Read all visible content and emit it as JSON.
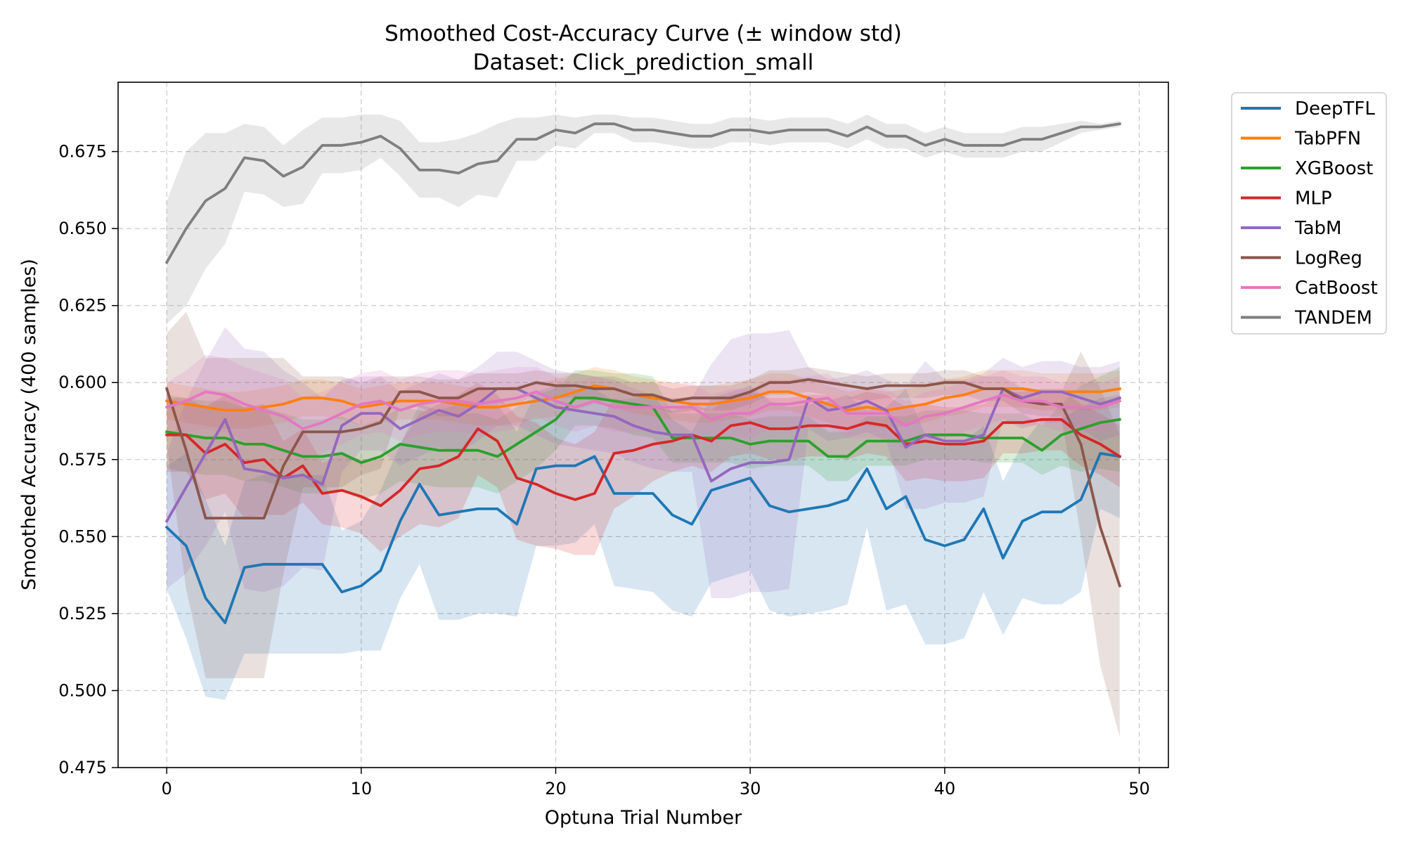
{
  "chart_data": {
    "type": "line",
    "title": "Smoothed Cost-Accuracy Curve (± window std)",
    "subtitle": "Dataset: Click_prediction_small",
    "xlabel": "Optuna Trial Number",
    "ylabel": "Smoothed Accuracy (400 samples)",
    "xlim": [
      -2.5,
      51.5
    ],
    "ylim": [
      0.475,
      0.6975
    ],
    "x_ticks": [
      0,
      10,
      20,
      30,
      40,
      50
    ],
    "y_ticks": [
      0.475,
      0.5,
      0.525,
      0.55,
      0.575,
      0.6,
      0.625,
      0.65,
      0.675
    ],
    "x_tick_labels": [
      "0",
      "10",
      "20",
      "30",
      "40",
      "50"
    ],
    "y_tick_labels": [
      "0.475",
      "0.500",
      "0.525",
      "0.550",
      "0.575",
      "0.600",
      "0.625",
      "0.650",
      "0.675"
    ],
    "grid": true,
    "legend_position": "outside-top-right",
    "x": [
      0,
      1,
      2,
      3,
      4,
      5,
      6,
      7,
      8,
      9,
      10,
      11,
      12,
      13,
      14,
      15,
      16,
      17,
      18,
      19,
      20,
      21,
      22,
      23,
      24,
      25,
      26,
      27,
      28,
      29,
      30,
      31,
      32,
      33,
      34,
      35,
      36,
      37,
      38,
      39,
      40,
      41,
      42,
      43,
      44,
      45,
      46,
      47,
      48,
      49
    ],
    "series": [
      {
        "name": "DeepTFL",
        "color": "#1f77b4",
        "values": [
          0.553,
          0.547,
          0.53,
          0.522,
          0.54,
          0.541,
          0.541,
          0.541,
          0.541,
          0.532,
          0.534,
          0.539,
          0.555,
          0.567,
          0.557,
          0.558,
          0.559,
          0.559,
          0.554,
          0.572,
          0.573,
          0.573,
          0.576,
          0.564,
          0.564,
          0.564,
          0.557,
          0.554,
          0.565,
          0.567,
          0.569,
          0.56,
          0.558,
          0.559,
          0.56,
          0.562,
          0.572,
          0.559,
          0.563,
          0.549,
          0.547,
          0.549,
          0.559,
          0.543,
          0.555,
          0.558,
          0.558,
          0.562,
          0.577,
          0.576
        ],
        "std": [
          0.02,
          0.03,
          0.032,
          0.025,
          0.028,
          0.029,
          0.029,
          0.029,
          0.029,
          0.02,
          0.021,
          0.026,
          0.025,
          0.026,
          0.034,
          0.035,
          0.034,
          0.034,
          0.03,
          0.025,
          0.026,
          0.025,
          0.022,
          0.03,
          0.031,
          0.032,
          0.031,
          0.03,
          0.03,
          0.03,
          0.03,
          0.034,
          0.034,
          0.034,
          0.034,
          0.034,
          0.019,
          0.033,
          0.035,
          0.034,
          0.032,
          0.032,
          0.027,
          0.025,
          0.025,
          0.03,
          0.03,
          0.03,
          0.018,
          0.02
        ]
      },
      {
        "name": "TabPFN",
        "color": "#ff7f0e",
        "values": [
          0.594,
          0.593,
          0.592,
          0.591,
          0.591,
          0.592,
          0.593,
          0.595,
          0.595,
          0.594,
          0.592,
          0.593,
          0.594,
          0.594,
          0.594,
          0.593,
          0.592,
          0.592,
          0.593,
          0.594,
          0.595,
          0.597,
          0.599,
          0.598,
          0.596,
          0.595,
          0.594,
          0.593,
          0.593,
          0.594,
          0.595,
          0.597,
          0.597,
          0.595,
          0.593,
          0.591,
          0.592,
          0.591,
          0.592,
          0.593,
          0.595,
          0.596,
          0.598,
          0.598,
          0.598,
          0.597,
          0.597,
          0.597,
          0.597,
          0.598
        ],
        "std": [
          0.006,
          0.006,
          0.006,
          0.006,
          0.006,
          0.006,
          0.006,
          0.006,
          0.006,
          0.006,
          0.006,
          0.006,
          0.006,
          0.006,
          0.006,
          0.006,
          0.006,
          0.006,
          0.006,
          0.006,
          0.006,
          0.006,
          0.006,
          0.006,
          0.006,
          0.006,
          0.006,
          0.006,
          0.006,
          0.006,
          0.006,
          0.006,
          0.006,
          0.006,
          0.006,
          0.006,
          0.006,
          0.006,
          0.006,
          0.006,
          0.006,
          0.006,
          0.006,
          0.006,
          0.006,
          0.006,
          0.006,
          0.006,
          0.006,
          0.006
        ]
      },
      {
        "name": "XGBoost",
        "color": "#2ca02c",
        "values": [
          0.584,
          0.583,
          0.582,
          0.582,
          0.58,
          0.58,
          0.578,
          0.576,
          0.576,
          0.577,
          0.574,
          0.576,
          0.58,
          0.579,
          0.578,
          0.578,
          0.578,
          0.576,
          0.58,
          0.584,
          0.588,
          0.595,
          0.595,
          0.594,
          0.593,
          0.592,
          0.582,
          0.582,
          0.582,
          0.582,
          0.58,
          0.581,
          0.581,
          0.581,
          0.576,
          0.576,
          0.581,
          0.581,
          0.581,
          0.583,
          0.583,
          0.583,
          0.582,
          0.582,
          0.582,
          0.578,
          0.583,
          0.585,
          0.587,
          0.588
        ],
        "std": [
          0.012,
          0.012,
          0.012,
          0.012,
          0.012,
          0.012,
          0.012,
          0.012,
          0.012,
          0.012,
          0.012,
          0.012,
          0.012,
          0.012,
          0.012,
          0.012,
          0.012,
          0.012,
          0.012,
          0.012,
          0.01,
          0.009,
          0.009,
          0.009,
          0.01,
          0.01,
          0.008,
          0.008,
          0.008,
          0.008,
          0.008,
          0.008,
          0.008,
          0.008,
          0.008,
          0.008,
          0.008,
          0.008,
          0.008,
          0.008,
          0.008,
          0.008,
          0.008,
          0.008,
          0.008,
          0.008,
          0.01,
          0.014,
          0.015,
          0.017
        ]
      },
      {
        "name": "MLP",
        "color": "#d62728",
        "values": [
          0.583,
          0.583,
          0.577,
          0.58,
          0.574,
          0.575,
          0.569,
          0.573,
          0.564,
          0.565,
          0.563,
          0.56,
          0.565,
          0.572,
          0.573,
          0.576,
          0.585,
          0.581,
          0.569,
          0.567,
          0.564,
          0.562,
          0.564,
          0.577,
          0.578,
          0.58,
          0.581,
          0.583,
          0.581,
          0.586,
          0.587,
          0.585,
          0.585,
          0.586,
          0.586,
          0.585,
          0.587,
          0.586,
          0.58,
          0.581,
          0.58,
          0.58,
          0.581,
          0.587,
          0.587,
          0.588,
          0.588,
          0.583,
          0.58,
          0.576
        ],
        "std": [
          0.012,
          0.012,
          0.015,
          0.016,
          0.018,
          0.018,
          0.012,
          0.012,
          0.01,
          0.012,
          0.012,
          0.015,
          0.015,
          0.018,
          0.02,
          0.02,
          0.015,
          0.015,
          0.02,
          0.02,
          0.018,
          0.018,
          0.02,
          0.018,
          0.015,
          0.012,
          0.01,
          0.01,
          0.01,
          0.01,
          0.01,
          0.01,
          0.01,
          0.01,
          0.01,
          0.01,
          0.01,
          0.01,
          0.012,
          0.012,
          0.012,
          0.012,
          0.012,
          0.01,
          0.01,
          0.01,
          0.01,
          0.01,
          0.01,
          0.01
        ]
      },
      {
        "name": "TabM",
        "color": "#9467bd",
        "values": [
          0.555,
          0.566,
          0.577,
          0.588,
          0.572,
          0.571,
          0.569,
          0.57,
          0.567,
          0.586,
          0.59,
          0.59,
          0.585,
          0.588,
          0.591,
          0.589,
          0.593,
          0.598,
          0.598,
          0.595,
          0.592,
          0.591,
          0.59,
          0.589,
          0.586,
          0.584,
          0.583,
          0.583,
          0.568,
          0.572,
          0.574,
          0.574,
          0.575,
          0.595,
          0.591,
          0.592,
          0.594,
          0.591,
          0.579,
          0.583,
          0.581,
          0.581,
          0.583,
          0.598,
          0.595,
          0.597,
          0.597,
          0.595,
          0.593,
          0.595
        ],
        "std": [
          0.022,
          0.028,
          0.03,
          0.03,
          0.039,
          0.039,
          0.035,
          0.03,
          0.028,
          0.015,
          0.012,
          0.012,
          0.012,
          0.012,
          0.012,
          0.012,
          0.012,
          0.012,
          0.012,
          0.012,
          0.012,
          0.012,
          0.012,
          0.012,
          0.012,
          0.012,
          0.012,
          0.012,
          0.038,
          0.042,
          0.042,
          0.042,
          0.042,
          0.01,
          0.01,
          0.01,
          0.01,
          0.01,
          0.02,
          0.024,
          0.02,
          0.02,
          0.02,
          0.01,
          0.01,
          0.01,
          0.01,
          0.01,
          0.012,
          0.012
        ]
      },
      {
        "name": "LogReg",
        "color": "#8c564b",
        "values": [
          0.598,
          0.578,
          0.556,
          0.556,
          0.556,
          0.556,
          0.573,
          0.584,
          0.584,
          0.584,
          0.585,
          0.587,
          0.597,
          0.597,
          0.595,
          0.595,
          0.598,
          0.598,
          0.598,
          0.6,
          0.599,
          0.599,
          0.598,
          0.598,
          0.596,
          0.596,
          0.594,
          0.595,
          0.595,
          0.595,
          0.597,
          0.6,
          0.6,
          0.601,
          0.6,
          0.599,
          0.598,
          0.599,
          0.599,
          0.599,
          0.6,
          0.6,
          0.598,
          0.598,
          0.594,
          0.593,
          0.593,
          0.58,
          0.553,
          0.534
        ],
        "std": [
          0.018,
          0.045,
          0.052,
          0.052,
          0.052,
          0.052,
          0.035,
          0.018,
          0.018,
          0.018,
          0.015,
          0.015,
          0.005,
          0.005,
          0.006,
          0.006,
          0.005,
          0.005,
          0.005,
          0.004,
          0.004,
          0.004,
          0.004,
          0.004,
          0.004,
          0.004,
          0.004,
          0.004,
          0.004,
          0.004,
          0.004,
          0.004,
          0.004,
          0.004,
          0.004,
          0.004,
          0.004,
          0.004,
          0.004,
          0.004,
          0.004,
          0.004,
          0.004,
          0.004,
          0.004,
          0.004,
          0.004,
          0.03,
          0.045,
          0.049
        ]
      },
      {
        "name": "CatBoost",
        "color": "#e377c2",
        "values": [
          0.592,
          0.594,
          0.597,
          0.596,
          0.593,
          0.591,
          0.589,
          0.585,
          0.587,
          0.59,
          0.593,
          0.594,
          0.591,
          0.593,
          0.594,
          0.594,
          0.593,
          0.594,
          0.595,
          0.597,
          0.594,
          0.592,
          0.594,
          0.592,
          0.592,
          0.592,
          0.592,
          0.592,
          0.588,
          0.59,
          0.59,
          0.593,
          0.593,
          0.594,
          0.595,
          0.59,
          0.59,
          0.59,
          0.586,
          0.589,
          0.59,
          0.592,
          0.594,
          0.596,
          0.594,
          0.594,
          0.592,
          0.592,
          0.592,
          0.594
        ],
        "std": [
          0.008,
          0.01,
          0.012,
          0.012,
          0.012,
          0.012,
          0.012,
          0.01,
          0.01,
          0.01,
          0.01,
          0.01,
          0.01,
          0.01,
          0.01,
          0.01,
          0.01,
          0.01,
          0.01,
          0.008,
          0.008,
          0.008,
          0.008,
          0.008,
          0.008,
          0.008,
          0.008,
          0.008,
          0.008,
          0.008,
          0.008,
          0.008,
          0.008,
          0.008,
          0.008,
          0.008,
          0.008,
          0.008,
          0.008,
          0.008,
          0.008,
          0.008,
          0.008,
          0.008,
          0.008,
          0.008,
          0.008,
          0.008,
          0.008,
          0.008
        ]
      },
      {
        "name": "TANDEM",
        "color": "#7f7f7f",
        "values": [
          0.639,
          0.65,
          0.659,
          0.663,
          0.673,
          0.672,
          0.667,
          0.67,
          0.677,
          0.677,
          0.678,
          0.68,
          0.676,
          0.669,
          0.669,
          0.668,
          0.671,
          0.672,
          0.679,
          0.679,
          0.682,
          0.681,
          0.684,
          0.684,
          0.682,
          0.682,
          0.681,
          0.68,
          0.68,
          0.682,
          0.682,
          0.681,
          0.682,
          0.682,
          0.682,
          0.68,
          0.683,
          0.68,
          0.68,
          0.677,
          0.679,
          0.677,
          0.677,
          0.677,
          0.679,
          0.679,
          0.681,
          0.683,
          0.683,
          0.684
        ],
        "std": [
          0.02,
          0.025,
          0.022,
          0.018,
          0.011,
          0.011,
          0.01,
          0.012,
          0.009,
          0.009,
          0.009,
          0.007,
          0.009,
          0.009,
          0.009,
          0.011,
          0.01,
          0.012,
          0.007,
          0.007,
          0.005,
          0.005,
          0.003,
          0.003,
          0.004,
          0.004,
          0.004,
          0.004,
          0.004,
          0.004,
          0.004,
          0.004,
          0.004,
          0.004,
          0.004,
          0.004,
          0.004,
          0.004,
          0.004,
          0.004,
          0.004,
          0.004,
          0.004,
          0.004,
          0.004,
          0.004,
          0.003,
          0.002,
          0.001,
          0.001
        ]
      }
    ]
  }
}
